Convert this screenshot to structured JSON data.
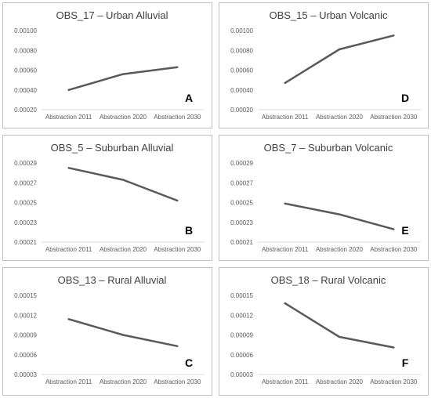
{
  "chart_data": [
    {
      "type": "line",
      "title": "OBS_17 – Urban Alluvial",
      "panel_label": "A",
      "categories": [
        "Abstraction 2011",
        "Abstraction 2020",
        "Abstraction 2030"
      ],
      "ylim": [
        0.0002,
        0.001
      ],
      "yticks": [
        "0.00020",
        "0.00040",
        "0.00060",
        "0.00080",
        "0.00100"
      ],
      "series": [
        {
          "values": [
            0.0004,
            0.00056,
            0.00063
          ]
        }
      ],
      "grid": false,
      "line_color": "#595959"
    },
    {
      "type": "line",
      "title": "OBS_15 – Urban Volcanic",
      "panel_label": "D",
      "categories": [
        "Abstraction 2011",
        "Abstraction 2020",
        "Abstraction 2030"
      ],
      "ylim": [
        0.0002,
        0.001
      ],
      "yticks": [
        "0.00020",
        "0.00040",
        "0.00060",
        "0.00080",
        "0.00100"
      ],
      "series": [
        {
          "values": [
            0.00047,
            0.00081,
            0.00095
          ]
        }
      ],
      "grid": false,
      "line_color": "#595959"
    },
    {
      "type": "line",
      "title": "OBS_5 – Suburban Alluvial",
      "panel_label": "B",
      "categories": [
        "Abstraction 2011",
        "Abstraction 2020",
        "Abstraction 2030"
      ],
      "ylim": [
        0.00021,
        0.00029
      ],
      "yticks": [
        "0.00021",
        "0.00023",
        "0.00025",
        "0.00027",
        "0.00029"
      ],
      "series": [
        {
          "values": [
            0.000285,
            0.000273,
            0.000252
          ]
        }
      ],
      "grid": false,
      "line_color": "#595959"
    },
    {
      "type": "line",
      "title": "OBS_7 – Suburban Volcanic",
      "panel_label": "E",
      "categories": [
        "Abstraction 2011",
        "Abstraction 2020",
        "Abstraction 2030"
      ],
      "ylim": [
        0.00021,
        0.00029
      ],
      "yticks": [
        "0.00021",
        "0.00023",
        "0.00025",
        "0.00027",
        "0.00029"
      ],
      "series": [
        {
          "values": [
            0.000249,
            0.000238,
            0.000223
          ]
        }
      ],
      "grid": false,
      "line_color": "#595959"
    },
    {
      "type": "line",
      "title": "OBS_13 – Rural Alluvial",
      "panel_label": "C",
      "categories": [
        "Abstraction 2011",
        "Abstraction 2020",
        "Abstraction 2030"
      ],
      "ylim": [
        3e-05,
        0.00015
      ],
      "yticks": [
        "0.00003",
        "0.00006",
        "0.00009",
        "0.00012",
        "0.00015"
      ],
      "series": [
        {
          "values": [
            0.000114,
            9e-05,
            7.3e-05
          ]
        }
      ],
      "grid": false,
      "line_color": "#595959"
    },
    {
      "type": "line",
      "title": "OBS_18 – Rural Volcanic",
      "panel_label": "F",
      "categories": [
        "Abstraction 2011",
        "Abstraction 2020",
        "Abstraction 2030"
      ],
      "ylim": [
        3e-05,
        0.00015
      ],
      "yticks": [
        "0.00003",
        "0.00006",
        "0.00009",
        "0.00012",
        "0.00015"
      ],
      "series": [
        {
          "values": [
            0.000138,
            8.7e-05,
            7.1e-05
          ]
        }
      ],
      "grid": false,
      "line_color": "#595959"
    }
  ]
}
